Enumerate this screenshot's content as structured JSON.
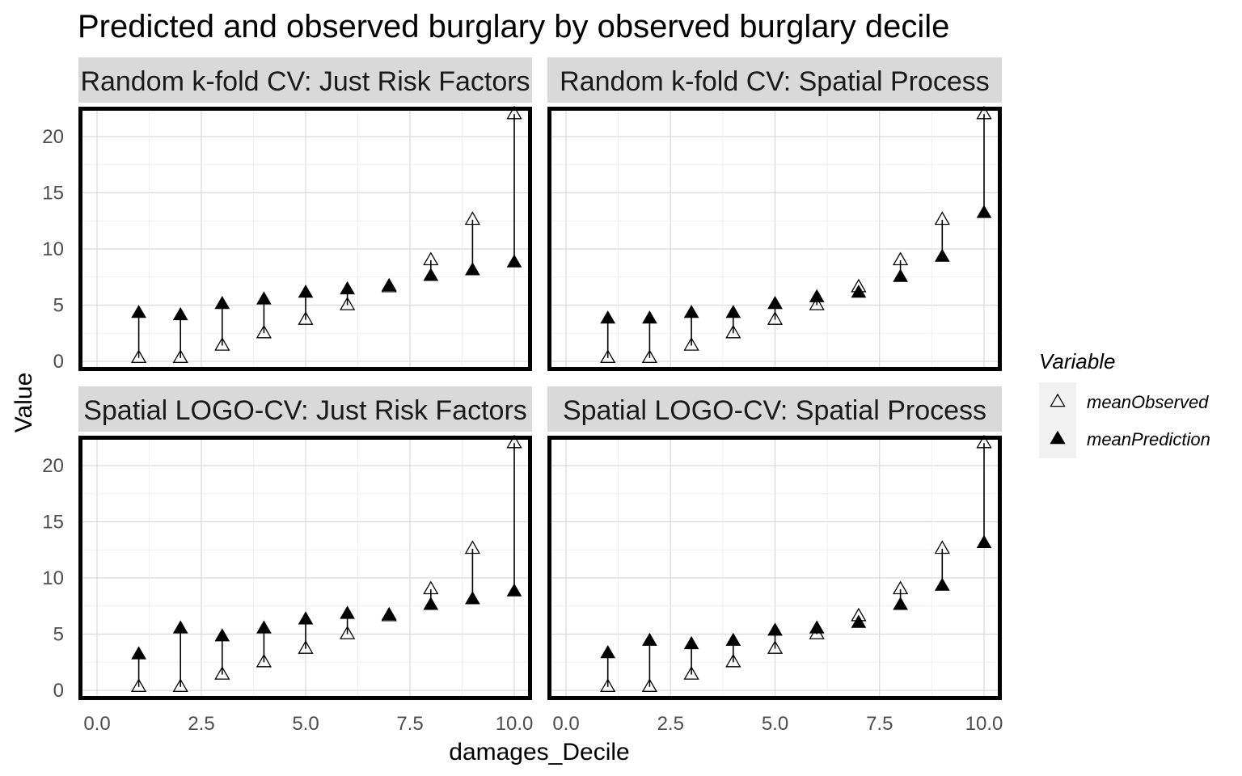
{
  "chart_data": {
    "type": "scatter",
    "title": "Predicted and observed burglary by observed burglary decile",
    "xlabel": "damages_Decile",
    "ylabel": "Value",
    "xlim": [
      0,
      10
    ],
    "ylim": [
      0,
      22
    ],
    "x_ticks": [
      "0.0",
      "2.5",
      "5.0",
      "7.5",
      "10.0"
    ],
    "y_ticks": [
      "0",
      "5",
      "10",
      "15",
      "20"
    ],
    "grid": true,
    "legend": {
      "title": "Variable",
      "placement": "right",
      "entries": [
        {
          "label": "meanObserved",
          "marker": "open-triangle",
          "color": "#000000"
        },
        {
          "label": "meanPrediction",
          "marker": "filled-triangle",
          "color": "#000000"
        }
      ]
    },
    "x": [
      1,
      2,
      3,
      4,
      5,
      6,
      7,
      8,
      9,
      10
    ],
    "facets": [
      {
        "label": "Random k-fold CV: Just Risk Factors",
        "series": [
          {
            "name": "meanObserved",
            "values": [
              0.3,
              0.3,
              1.4,
              2.5,
              3.7,
              5.0,
              6.6,
              9.0,
              12.6,
              22.0
            ]
          },
          {
            "name": "meanPrediction",
            "values": [
              4.3,
              4.1,
              5.1,
              5.5,
              6.1,
              6.4,
              6.7,
              7.6,
              8.1,
              8.8
            ]
          }
        ]
      },
      {
        "label": "Random k-fold CV: Spatial Process",
        "series": [
          {
            "name": "meanObserved",
            "values": [
              0.3,
              0.3,
              1.4,
              2.5,
              3.7,
              5.0,
              6.6,
              9.0,
              12.6,
              22.0
            ]
          },
          {
            "name": "meanPrediction",
            "values": [
              3.8,
              3.8,
              4.3,
              4.3,
              5.1,
              5.7,
              6.1,
              7.5,
              9.3,
              13.2
            ]
          }
        ]
      },
      {
        "label": "Spatial LOGO-CV: Just Risk Factors",
        "series": [
          {
            "name": "meanObserved",
            "values": [
              0.3,
              0.3,
              1.4,
              2.5,
              3.7,
              5.0,
              6.6,
              9.0,
              12.6,
              22.0
            ]
          },
          {
            "name": "meanPrediction",
            "values": [
              3.2,
              5.5,
              4.8,
              5.5,
              6.3,
              6.8,
              6.7,
              7.6,
              8.1,
              8.8
            ]
          }
        ]
      },
      {
        "label": "Spatial LOGO-CV: Spatial Process",
        "series": [
          {
            "name": "meanObserved",
            "values": [
              0.3,
              0.3,
              1.4,
              2.5,
              3.7,
              5.0,
              6.6,
              9.0,
              12.6,
              22.0
            ]
          },
          {
            "name": "meanPrediction",
            "values": [
              3.3,
              4.4,
              4.1,
              4.4,
              5.3,
              5.5,
              6.0,
              7.6,
              9.3,
              13.1
            ]
          }
        ]
      }
    ]
  }
}
